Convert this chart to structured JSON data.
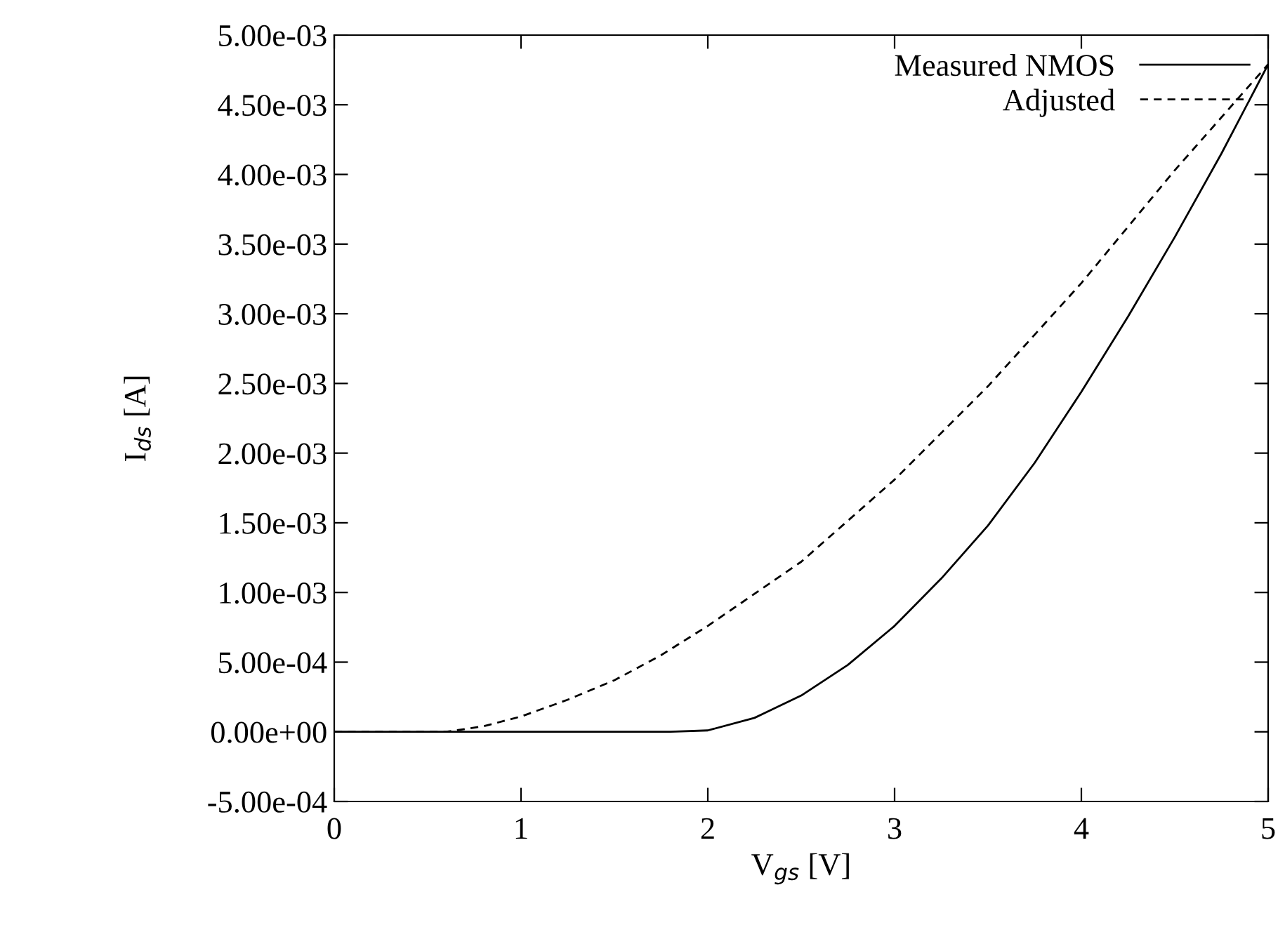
{
  "chart_data": {
    "type": "line",
    "xlabel": "V$_{gs}$ [V]",
    "ylabel": "I$_{ds}$ [A]",
    "series": [
      {
        "name": "Measured NMOS",
        "color": "#000000",
        "line_style": "solid",
        "x": [
          0,
          1,
          1.8,
          2,
          2.25,
          2.5,
          2.75,
          3,
          3.25,
          3.5,
          3.75,
          4,
          4.25,
          4.5,
          4.75,
          5
        ],
        "values": [
          0,
          0,
          0,
          1e-05,
          0.0001,
          0.00026,
          0.00048,
          0.00076,
          0.0011,
          0.00148,
          0.00193,
          0.00244,
          0.00298,
          0.00355,
          0.00415,
          0.00479
        ]
      },
      {
        "name": "Adjusted",
        "color": "#000000",
        "line_style": "dashed",
        "x": [
          0,
          0.6,
          0.8,
          1,
          1.25,
          1.5,
          1.75,
          2,
          2.5,
          3,
          3.5,
          4,
          4.5,
          5
        ],
        "values": [
          0,
          0,
          4e-05,
          0.00011,
          0.00023,
          0.00037,
          0.00055,
          0.00076,
          0.00122,
          0.00181,
          0.00248,
          0.00322,
          0.00403,
          0.00479
        ]
      }
    ],
    "xlim": [
      0,
      5
    ],
    "xticks": [
      0,
      1,
      2,
      3,
      4,
      5
    ],
    "ylim": [
      -0.0005,
      0.005
    ],
    "yticks": [
      {
        "value": -0.0005,
        "label": "-5.00e-04"
      },
      {
        "value": 0,
        "label": "0.00e+00"
      },
      {
        "value": 0.0005,
        "label": "5.00e-04"
      },
      {
        "value": 0.001,
        "label": "1.00e-03"
      },
      {
        "value": 0.0015,
        "label": "1.50e-03"
      },
      {
        "value": 0.002,
        "label": "2.00e-03"
      },
      {
        "value": 0.0025,
        "label": "2.50e-03"
      },
      {
        "value": 0.003,
        "label": "3.00e-03"
      },
      {
        "value": 0.0035,
        "label": "3.50e-03"
      },
      {
        "value": 0.004,
        "label": "4.00e-03"
      },
      {
        "value": 0.0045,
        "label": "4.50e-03"
      },
      {
        "value": 0.005,
        "label": "5.00e-03"
      }
    ],
    "legend": "top right",
    "grid": false,
    "marker": "none"
  }
}
